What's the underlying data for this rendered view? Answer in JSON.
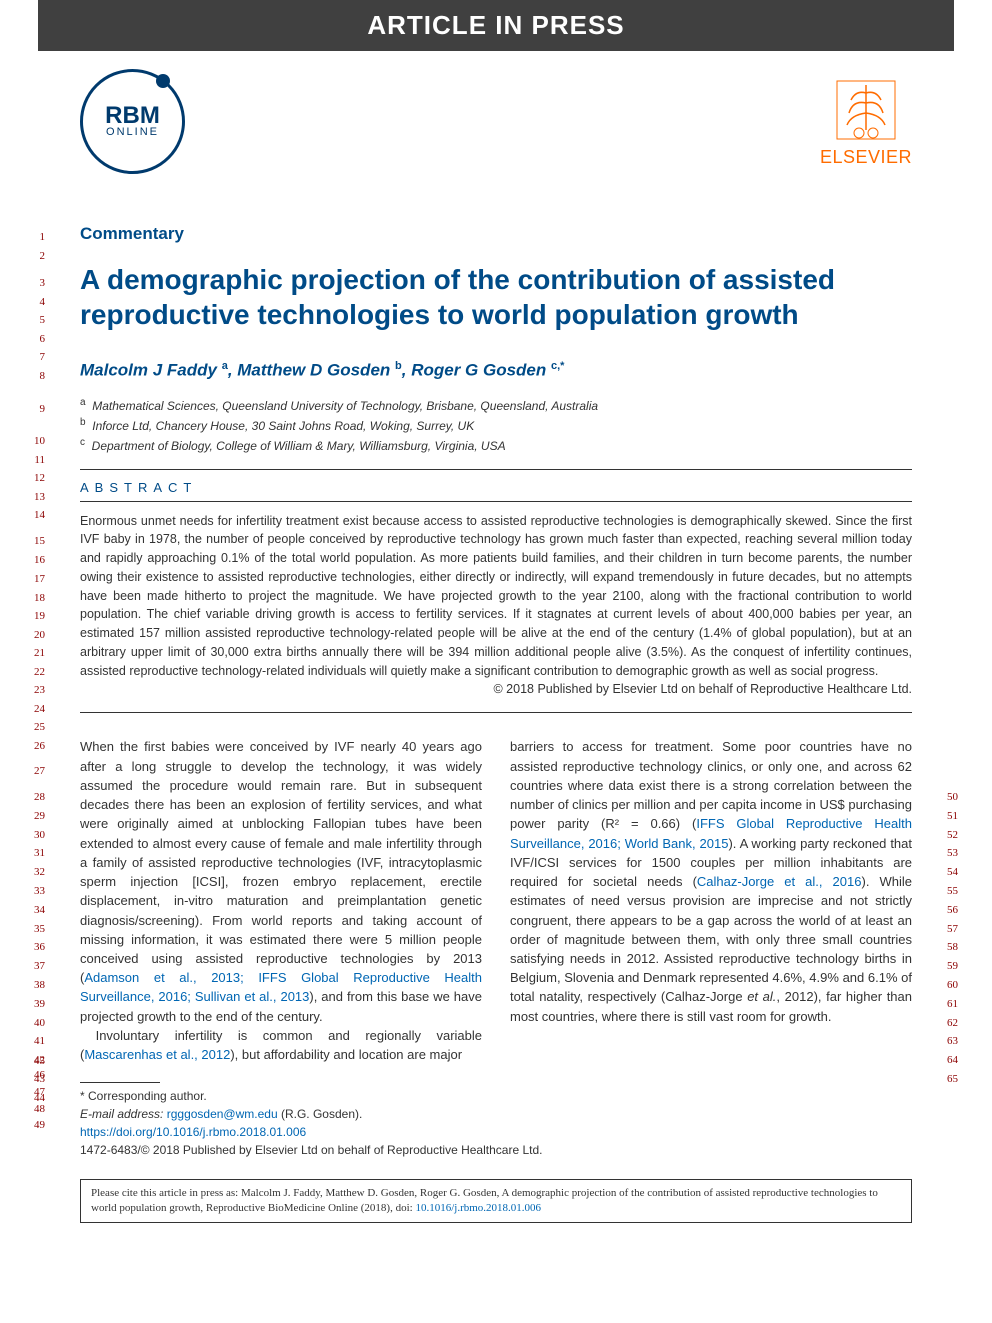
{
  "banner": "ARTICLE IN PRESS",
  "journal_logo": {
    "main": "RBM",
    "sub": "ONLINE"
  },
  "publisher_logo": "ELSEVIER",
  "article_type": "Commentary",
  "title": "A demographic projection of the contribution of assisted reproductive technologies to world population growth",
  "authors_html": "Malcolm J Faddy <sup>a</sup>, Matthew D Gosden <sup>b</sup>, Roger G Gosden <sup>c,*</sup>",
  "affiliations": [
    {
      "sup": "a",
      "text": "Mathematical Sciences, Queensland University of Technology, Brisbane, Queensland, Australia"
    },
    {
      "sup": "b",
      "text": "Inforce Ltd, Chancery House, 30 Saint Johns Road, Woking, Surrey, UK"
    },
    {
      "sup": "c",
      "text": "Department of Biology, College of William & Mary, Williamsburg, Virginia, USA"
    }
  ],
  "abstract_heading": "ABSTRACT",
  "abstract": "Enormous unmet needs for infertility treatment exist because access to assisted reproductive technologies is demographically skewed. Since the first IVF baby in 1978, the number of people conceived by reproductive technology has grown much faster than expected, reaching several million today and rapidly approaching 0.1% of the total world population. As more patients build families, and their children in turn become parents, the number owing their existence to assisted reproductive technologies, either directly or indirectly, will expand tremendously in future decades, but no attempts have been made hitherto to project the magnitude. We have projected growth to the year 2100, along with the fractional contribution to world population. The chief variable driving growth is access to fertility services. If it stagnates at current levels of about 400,000 babies per year, an estimated 157 million assisted reproductive technology-related people will be alive at the end of the century (1.4% of global population), but at an arbitrary upper limit of 30,000 extra births annually there will be 394 million additional people alive (3.5%). As the conquest of infertility continues, assisted reproductive technology-related individuals will quietly make a significant contribution to demographic growth as well as social progress.",
  "abstract_copyright": "© 2018 Published by Elsevier Ltd on behalf of Reproductive Healthcare Ltd.",
  "body": {
    "left": {
      "p1_a": "When the first babies were conceived by IVF nearly 40 years ago after a long struggle to develop the technology, it was widely assumed the procedure would remain rare. But in subsequent decades there has been an explosion of fertility services, and what were originally aimed at unblocking Fallopian tubes have been extended to almost every cause of female and male infertility through a family of assisted reproductive technologies (IVF, intracytoplasmic sperm injection [ICSI], frozen embryo replacement, erectile displacement, in-vitro maturation and preimplantation genetic diagnosis/screening). From world reports and taking account of missing information, it was estimated there were 5 million people conceived using assisted reproductive technologies by 2013 (",
      "p1_link1": "Adamson et al., 2013; IFFS Global Reproductive Health Surveillance, 2016; Sullivan et al., 2013",
      "p1_b": "), and from this base we have projected growth to the end of the century.",
      "p2_a": "Involuntary infertility is common and regionally variable (",
      "p2_link1": "Mascarenhas et al., 2012",
      "p2_b": "), but affordability and location are major"
    },
    "right": {
      "p1_a": "barriers to access for treatment. Some poor countries have no assisted reproductive technology clinics, or only one, and across 62 countries where data exist there is a strong correlation between the number of clinics per million and per capita income in US$ purchasing power parity (R² = 0.66) (",
      "p1_link1": "IFFS Global Reproductive Health Surveillance, 2016; World Bank, 2015",
      "p1_b": "). A working party reckoned that IVF/ICSI services for 1500 couples per million inhabitants are required for societal needs (",
      "p1_link2": "Calhaz-Jorge et al., 2016",
      "p1_c": "). While estimates of need versus provision are imprecise and not strictly congruent, there appears to be a gap across the world of at least an order of magnitude between them, with only three small countries satisfying needs in 2012. Assisted reproductive technology births in Belgium, Slovenia and Denmark represented 4.6%, 4.9% and 6.1% of total natality, respectively (Calhaz-Jorge ",
      "p1_d": "et al.",
      "p1_e": ", 2012), far higher than most countries, where there is still vast room for growth."
    }
  },
  "footnotes": {
    "corresponding": "* Corresponding author.",
    "email_label": "E-mail address:",
    "email": "rgggosden@wm.edu",
    "email_name": " (R.G. Gosden).",
    "doi": "https://doi.org/10.1016/j.rbmo.2018.01.006",
    "copyright": "1472-6483/© 2018 Published by Elsevier Ltd on behalf of Reproductive Healthcare Ltd."
  },
  "cite_box": {
    "prefix": "Please cite this article in press as: Malcolm J. Faddy, Matthew D. Gosden, Roger G. Gosden, A demographic projection of the contribution of assisted reproductive technologies to world population growth, Reproductive BioMedicine Online (2018), doi: ",
    "doi": "10.1016/j.rbmo.2018.01.006"
  },
  "line_numbers": {
    "left_start": 1,
    "left_end": 49,
    "right_start": 50,
    "right_end": 65
  },
  "colors": {
    "banner_bg": "#404040",
    "heading": "#004b87",
    "link": "#0066b3",
    "publisher": "#ff6c00",
    "linenum": "#8b0000",
    "text": "#333333"
  }
}
